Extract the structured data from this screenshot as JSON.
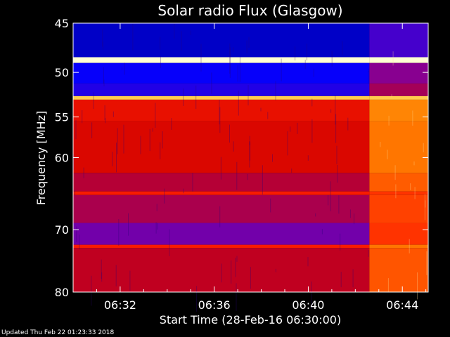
{
  "chart_data": {
    "type": "heatmap",
    "title": "Solar radio Flux (Glasgow)",
    "xlabel": "Start Time (28-Feb-16 06:30:00)",
    "ylabel": "Frequency [MHz]",
    "x_unit": "minutes after 06:30:00",
    "xlim": [
      0,
      15.1
    ],
    "ylim": [
      45,
      80
    ],
    "y_scale": "log",
    "x_ticks": [
      {
        "value": 2,
        "label": "06:32"
      },
      {
        "value": 6,
        "label": "06:36"
      },
      {
        "value": 10,
        "label": "06:40"
      },
      {
        "value": 14,
        "label": "06:44"
      }
    ],
    "y_ticks": [
      {
        "value": 45,
        "label": "45"
      },
      {
        "value": 50,
        "label": "50"
      },
      {
        "value": 55,
        "label": "55"
      },
      {
        "value": 60,
        "label": "60"
      },
      {
        "value": 70,
        "label": "70"
      },
      {
        "value": 80,
        "label": "80"
      }
    ],
    "colormap": [
      "#000080",
      "#0000ff",
      "#8000a0",
      "#d00000",
      "#ff2000",
      "#ff8000",
      "#ffff80",
      "#ffffff"
    ],
    "burst_onset_minute": 12.6,
    "bands": [
      {
        "from": 45.0,
        "to": 48.4,
        "level_before": 0.08,
        "level_after": 0.22
      },
      {
        "from": 48.4,
        "to": 49.0,
        "level_before": 0.95,
        "level_after": 0.95
      },
      {
        "from": 49.0,
        "to": 51.2,
        "level_before": 0.15,
        "level_after": 0.3
      },
      {
        "from": 51.2,
        "to": 52.6,
        "level_before": 0.18,
        "level_after": 0.35
      },
      {
        "from": 52.6,
        "to": 53.0,
        "level_before": 0.8,
        "level_after": 0.8
      },
      {
        "from": 53.0,
        "to": 55.5,
        "level_before": 0.5,
        "level_after": 0.72
      },
      {
        "from": 55.5,
        "to": 62.0,
        "level_before": 0.46,
        "level_after": 0.7
      },
      {
        "from": 62.0,
        "to": 64.5,
        "level_before": 0.38,
        "level_after": 0.66
      },
      {
        "from": 64.5,
        "to": 65.0,
        "level_before": 0.55,
        "level_after": 0.6
      },
      {
        "from": 65.0,
        "to": 69.0,
        "level_before": 0.36,
        "level_after": 0.62
      },
      {
        "from": 69.0,
        "to": 72.3,
        "level_before": 0.27,
        "level_after": 0.6
      },
      {
        "from": 72.3,
        "to": 72.8,
        "level_before": 0.55,
        "level_after": 0.7
      },
      {
        "from": 72.8,
        "to": 80.0,
        "level_before": 0.4,
        "level_after": 0.65
      }
    ]
  },
  "footer": {
    "updated": "Updated Thu Feb 22 01:23:33 2018"
  }
}
